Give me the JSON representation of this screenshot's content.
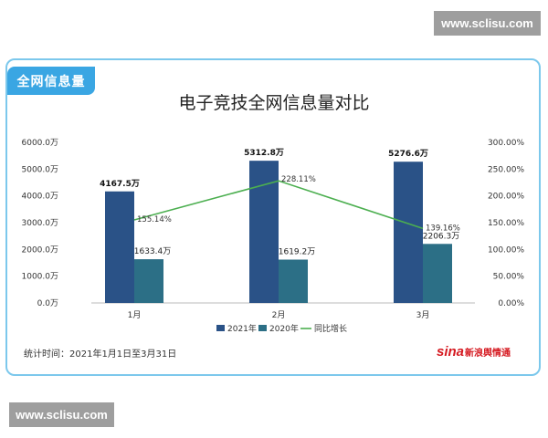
{
  "watermark": {
    "top": "www.sclisu.com",
    "bottom": "www.sclisu.com"
  },
  "panel": {
    "tab_label": "全网信息量"
  },
  "footer": {
    "range_text": "统计时间：2021年1月1日至3月31日"
  },
  "brand": {
    "mark": "sina",
    "name": "新浪舆情通"
  },
  "colors": {
    "bar2021": "#2a5287",
    "bar2020": "#2c6f86",
    "line": "#4caf50",
    "tab": "#3aa6e3",
    "border": "#7cc8ec"
  },
  "chart_data": {
    "type": "bar",
    "title": "电子竞技全网信息量对比",
    "categories": [
      "1月",
      "2月",
      "3月"
    ],
    "series": [
      {
        "name": "2021年",
        "values": [
          4167.5,
          5312.8,
          5276.6
        ],
        "labels": [
          "4167.5万",
          "5312.8万",
          "5276.6万"
        ]
      },
      {
        "name": "2020年",
        "values": [
          1633.4,
          1619.2,
          2206.3
        ],
        "labels": [
          "1633.4万",
          "1619.2万",
          "2206.3万"
        ]
      }
    ],
    "line_series": {
      "name": "同比增长",
      "values": [
        155.14,
        228.11,
        139.16
      ],
      "labels": [
        "155.14%",
        "228.11%",
        "139.16%"
      ]
    },
    "y_left": {
      "ylim": [
        0,
        6000
      ],
      "ticks": [
        "0.0万",
        "1000.0万",
        "2000.0万",
        "3000.0万",
        "4000.0万",
        "5000.0万",
        "6000.0万"
      ]
    },
    "y_right": {
      "ylim": [
        0,
        300
      ],
      "ticks": [
        "0.00%",
        "50.00%",
        "100.00%",
        "150.00%",
        "200.00%",
        "250.00%",
        "300.00%"
      ]
    },
    "legend_placement": "bottom",
    "grid": false
  }
}
